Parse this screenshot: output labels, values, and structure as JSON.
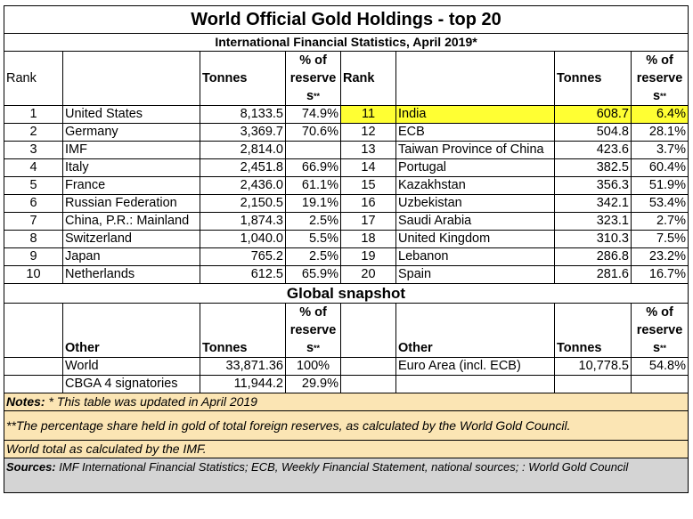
{
  "title": "World Official Gold Holdings - top 20",
  "subtitle": "International Financial Statistics, April 2019*",
  "headers": {
    "rank": "Rank",
    "tonnes": "Tonnes",
    "pct_line1": "% of",
    "pct_line2": "reserve",
    "pct_line3": "s",
    "pct_mark": "**"
  },
  "left_rows": [
    {
      "rank": "1",
      "country": "United States",
      "tonnes": "8,133.5",
      "pct": "74.9%"
    },
    {
      "rank": "2",
      "country": "Germany",
      "tonnes": "3,369.7",
      "pct": "70.6%"
    },
    {
      "rank": "3",
      "country": "IMF",
      "tonnes": "2,814.0",
      "pct": ""
    },
    {
      "rank": "4",
      "country": "Italy",
      "tonnes": "2,451.8",
      "pct": "66.9%"
    },
    {
      "rank": "5",
      "country": "France",
      "tonnes": "2,436.0",
      "pct": "61.1%"
    },
    {
      "rank": "6",
      "country": "Russian Federation",
      "tonnes": "2,150.5",
      "pct": "19.1%"
    },
    {
      "rank": "7",
      "country": "China, P.R.: Mainland",
      "tonnes": "1,874.3",
      "pct": "2.5%"
    },
    {
      "rank": "8",
      "country": "Switzerland",
      "tonnes": "1,040.0",
      "pct": "5.5%"
    },
    {
      "rank": "9",
      "country": "Japan",
      "tonnes": "765.2",
      "pct": "2.5%"
    },
    {
      "rank": "10",
      "country": "Netherlands",
      "tonnes": "612.5",
      "pct": "65.9%"
    }
  ],
  "right_rows": [
    {
      "rank": "11",
      "country": "India",
      "tonnes": "608.7",
      "pct": "6.4%"
    },
    {
      "rank": "12",
      "country": "ECB",
      "tonnes": "504.8",
      "pct": "28.1%"
    },
    {
      "rank": "13",
      "country": "Taiwan Province of China",
      "tonnes": "423.6",
      "pct": "3.7%"
    },
    {
      "rank": "14",
      "country": "Portugal",
      "tonnes": "382.5",
      "pct": "60.4%"
    },
    {
      "rank": "15",
      "country": "Kazakhstan",
      "tonnes": "356.3",
      "pct": "51.9%"
    },
    {
      "rank": "16",
      "country": "Uzbekistan",
      "tonnes": "342.1",
      "pct": "53.4%"
    },
    {
      "rank": "17",
      "country": "Saudi Arabia",
      "tonnes": "323.1",
      "pct": "2.7%"
    },
    {
      "rank": "18",
      "country": "United Kingdom",
      "tonnes": "310.3",
      "pct": "7.5%"
    },
    {
      "rank": "19",
      "country": "Lebanon",
      "tonnes": "286.8",
      "pct": "23.2%"
    },
    {
      "rank": "20",
      "country": "Spain",
      "tonnes": "281.6",
      "pct": "16.7%"
    }
  ],
  "snapshot": {
    "title": "Global snapshot",
    "other_label": "Other",
    "left_rows": [
      {
        "name": "World",
        "tonnes": "33,871.36",
        "pct": "100%"
      },
      {
        "name": "CBGA 4 signatories",
        "tonnes": "11,944.2",
        "pct": "29.9%"
      }
    ],
    "right_rows": [
      {
        "name": "Euro Area (incl. ECB)",
        "tonnes": "10,778.5",
        "pct": "54.8%"
      }
    ]
  },
  "notes": {
    "label": "Notes:",
    "note1": " * This table was updated in April 2019",
    "note2": "**The percentage share held in gold of total foreign reserves, as calculated by the World Gold Council.",
    "note3": "World total as calculated by the IMF."
  },
  "sources": {
    "label": "Sources:",
    "text": " IMF International Financial Statistics; ECB, Weekly Financial Statement, national sources; : World Gold Council"
  },
  "colors": {
    "highlight": "#ffff33",
    "notes_bg": "#fbe5b4",
    "sources_bg": "#d4d4d4"
  }
}
